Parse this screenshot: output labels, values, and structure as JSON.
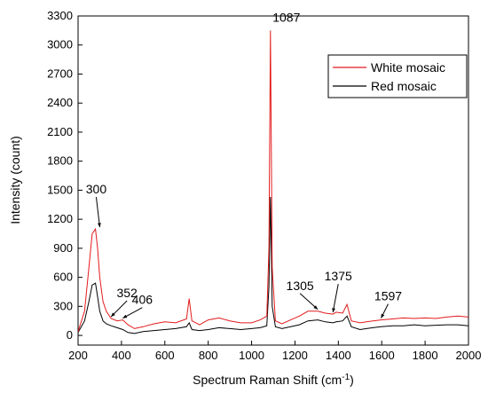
{
  "chart_data": {
    "type": "line",
    "title": "",
    "xlabel": "Spectrum Raman Shift (cm",
    "xlabel_sup": "-1",
    "xlabel_end": ")",
    "ylabel": "Intensity (count)",
    "xlim": [
      200,
      2000
    ],
    "ylim": [
      -100,
      3300
    ],
    "xticks": [
      "200",
      "400",
      "600",
      "800",
      "1000",
      "1200",
      "1400",
      "1600",
      "1800",
      "2000"
    ],
    "yticks": [
      "0",
      "300",
      "600",
      "900",
      "1200",
      "1500",
      "1800",
      "2100",
      "2400",
      "2700",
      "3000",
      "3300"
    ],
    "grid": false,
    "legend_position": "top-right",
    "series": [
      {
        "name": "White mosaic",
        "color": "#e31a1c",
        "x": [
          200,
          230,
          250,
          265,
          280,
          290,
          300,
          315,
          330,
          352,
          380,
          406,
          430,
          460,
          500,
          550,
          600,
          650,
          700,
          712,
          725,
          760,
          800,
          850,
          900,
          950,
          1000,
          1040,
          1070,
          1080,
          1087,
          1095,
          1110,
          1140,
          1180,
          1220,
          1260,
          1305,
          1340,
          1375,
          1390,
          1420,
          1440,
          1460,
          1500,
          1530,
          1560,
          1597,
          1650,
          1700,
          1750,
          1800,
          1850,
          1900,
          1950,
          2000
        ],
        "values": [
          40,
          250,
          700,
          1050,
          1100,
          900,
          600,
          350,
          250,
          175,
          150,
          160,
          110,
          70,
          90,
          120,
          140,
          130,
          170,
          380,
          150,
          110,
          160,
          180,
          150,
          130,
          130,
          160,
          200,
          900,
          3150,
          700,
          150,
          120,
          160,
          200,
          250,
          250,
          230,
          220,
          240,
          230,
          320,
          150,
          130,
          140,
          150,
          160,
          170,
          180,
          175,
          180,
          175,
          190,
          200,
          190
        ]
      },
      {
        "name": "Red mosaic",
        "color": "#000000",
        "x": [
          200,
          230,
          250,
          265,
          280,
          290,
          300,
          315,
          330,
          352,
          380,
          406,
          430,
          460,
          500,
          550,
          600,
          650,
          700,
          712,
          725,
          760,
          800,
          850,
          900,
          950,
          1000,
          1040,
          1070,
          1080,
          1087,
          1095,
          1110,
          1140,
          1180,
          1220,
          1260,
          1305,
          1340,
          1375,
          1390,
          1420,
          1440,
          1460,
          1500,
          1530,
          1560,
          1597,
          1650,
          1700,
          1750,
          1800,
          1850,
          1900,
          1950,
          2000
        ],
        "values": [
          30,
          150,
          350,
          520,
          540,
          400,
          250,
          150,
          120,
          100,
          80,
          60,
          30,
          20,
          40,
          50,
          60,
          70,
          90,
          130,
          60,
          50,
          60,
          80,
          70,
          60,
          70,
          80,
          100,
          500,
          1430,
          300,
          90,
          70,
          90,
          110,
          150,
          160,
          140,
          130,
          140,
          150,
          200,
          90,
          60,
          70,
          80,
          90,
          100,
          100,
          110,
          100,
          105,
          110,
          110,
          100
        ]
      }
    ],
    "annotations": [
      {
        "text": "300",
        "x": 300,
        "y": 1100
      },
      {
        "text": "352",
        "x": 352,
        "y": 175
      },
      {
        "text": "406",
        "x": 406,
        "y": 160
      },
      {
        "text": "1087",
        "x": 1087,
        "y": 3150
      },
      {
        "text": "1305",
        "x": 1305,
        "y": 250
      },
      {
        "text": "1375",
        "x": 1375,
        "y": 220
      },
      {
        "text": "1597",
        "x": 1597,
        "y": 160
      }
    ]
  }
}
